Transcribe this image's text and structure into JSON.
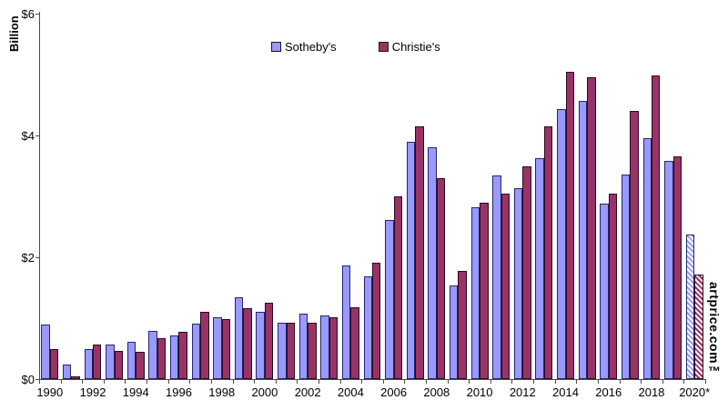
{
  "chart_data": {
    "type": "bar",
    "title": "",
    "ylabel": "Billion",
    "ylim": [
      0,
      6
    ],
    "grid": false,
    "legend_position": "top-center",
    "yticks": [
      {
        "value": 0,
        "label": "$0"
      },
      {
        "value": 2,
        "label": "$2"
      },
      {
        "value": 4,
        "label": "$4"
      },
      {
        "value": 6,
        "label": "$6"
      }
    ],
    "categories": [
      "1990",
      "1991",
      "1992",
      "1993",
      "1994",
      "1995",
      "1996",
      "1997",
      "1998",
      "1999",
      "2000",
      "2001",
      "2002",
      "2003",
      "2004",
      "2005",
      "2006",
      "2007",
      "2008",
      "2009",
      "2010",
      "2011",
      "2012",
      "2013",
      "2014",
      "2015",
      "2016",
      "2017",
      "2018",
      "2019",
      "2020*"
    ],
    "xtick_label_every": 2,
    "series": [
      {
        "name": "Sotheby's",
        "color": "#9999FF",
        "values": [
          0.9,
          0.24,
          0.49,
          0.57,
          0.61,
          0.79,
          0.72,
          0.91,
          1.01,
          1.34,
          1.1,
          0.93,
          1.07,
          1.04,
          1.86,
          1.68,
          2.61,
          3.9,
          3.8,
          1.53,
          2.82,
          3.35,
          3.13,
          3.63,
          4.44,
          4.57,
          2.88,
          3.36,
          3.96,
          3.58,
          2.38
        ]
      },
      {
        "name": "Christie's",
        "color": "#993366",
        "values": [
          0.5,
          0.05,
          0.57,
          0.47,
          0.45,
          0.67,
          0.77,
          1.11,
          0.99,
          1.16,
          1.26,
          0.93,
          0.93,
          1.01,
          1.18,
          1.91,
          3.0,
          4.15,
          3.3,
          1.78,
          2.89,
          3.05,
          3.49,
          4.15,
          5.05,
          4.96,
          3.05,
          4.4,
          4.98,
          3.65,
          1.72
        ]
      }
    ],
    "hatched_categories": [
      "2020*"
    ]
  },
  "watermark": "artprice.com™"
}
